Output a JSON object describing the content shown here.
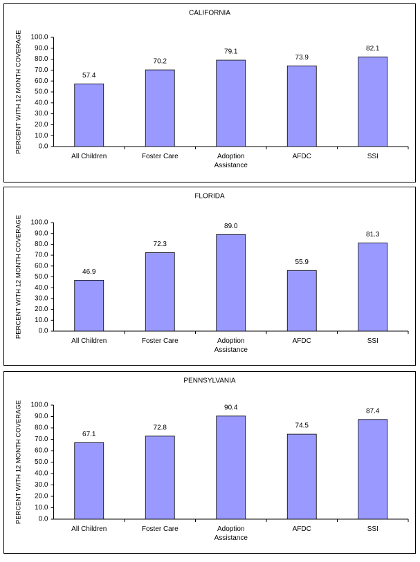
{
  "chart_data": [
    {
      "type": "bar",
      "title": "CALIFORNIA",
      "y_label": "PERCENT WITH 12 MONTH COVERAGE",
      "categories": [
        "All Children",
        "Foster Care",
        "Adoption Assistance",
        "AFDC",
        "SSI"
      ],
      "values": [
        57.4,
        70.2,
        79.1,
        73.9,
        82.1
      ],
      "color": "#9999ff",
      "ylim": [
        0,
        100
      ],
      "yticks": [
        {
          "value": 0,
          "label": "0.0"
        },
        {
          "value": 10,
          "label": "10.0"
        },
        {
          "value": 20,
          "label": "20.0"
        },
        {
          "value": 30,
          "label": "30.0"
        },
        {
          "value": 40,
          "label": "40.0"
        },
        {
          "value": 50,
          "label": "50.0"
        },
        {
          "value": 60,
          "label": "60.0"
        },
        {
          "value": 70,
          "label": "70.0"
        },
        {
          "value": 80,
          "label": "80.0"
        },
        {
          "value": 90,
          "label": "90.0"
        },
        {
          "value": 100,
          "label": "100.0"
        }
      ]
    },
    {
      "type": "bar",
      "title": "FLORIDA",
      "y_label": "PERCENT WITH 12 MONTH COVERAGE",
      "categories": [
        "All Children",
        "Foster Care",
        "Adoption Assistance",
        "AFDC",
        "SSI"
      ],
      "values": [
        46.9,
        72.3,
        89.0,
        55.9,
        81.3
      ],
      "value_labels": [
        "46.9",
        "72.3",
        "89.0",
        "55.9",
        "81.3"
      ],
      "color": "#9999ff",
      "ylim": [
        0,
        100
      ],
      "yticks": [
        {
          "value": 0,
          "label": "0.0"
        },
        {
          "value": 10,
          "label": "10.0"
        },
        {
          "value": 20,
          "label": "20.0"
        },
        {
          "value": 30,
          "label": "30.0"
        },
        {
          "value": 40,
          "label": "40.0"
        },
        {
          "value": 50,
          "label": "50.0"
        },
        {
          "value": 60,
          "label": "60.0"
        },
        {
          "value": 70,
          "label": "70.0"
        },
        {
          "value": 80,
          "label": "80.0"
        },
        {
          "value": 90,
          "label": "90.0"
        },
        {
          "value": 100,
          "label": "100.0"
        }
      ]
    },
    {
      "type": "bar",
      "title": "PENNSYLVANIA",
      "y_label": "PERCENT WITH 12 MONTH COVERAGE",
      "categories": [
        "All Children",
        "Foster Care",
        "Adoption Assistance",
        "AFDC",
        "SSI"
      ],
      "values": [
        67.1,
        72.8,
        90.4,
        74.5,
        87.4
      ],
      "color": "#9999ff",
      "ylim": [
        0,
        100
      ],
      "yticks": [
        {
          "value": 0,
          "label": "0.0"
        },
        {
          "value": 10,
          "label": "10.0"
        },
        {
          "value": 20,
          "label": "20.0"
        },
        {
          "value": 30,
          "label": "30.0"
        },
        {
          "value": 40,
          "label": "40.0"
        },
        {
          "value": 50,
          "label": "50.0"
        },
        {
          "value": 60,
          "label": "60.0"
        },
        {
          "value": 70,
          "label": "70.0"
        },
        {
          "value": 80,
          "label": "80.0"
        },
        {
          "value": 90,
          "label": "90.0"
        },
        {
          "value": 100,
          "label": "100.0"
        }
      ]
    }
  ]
}
